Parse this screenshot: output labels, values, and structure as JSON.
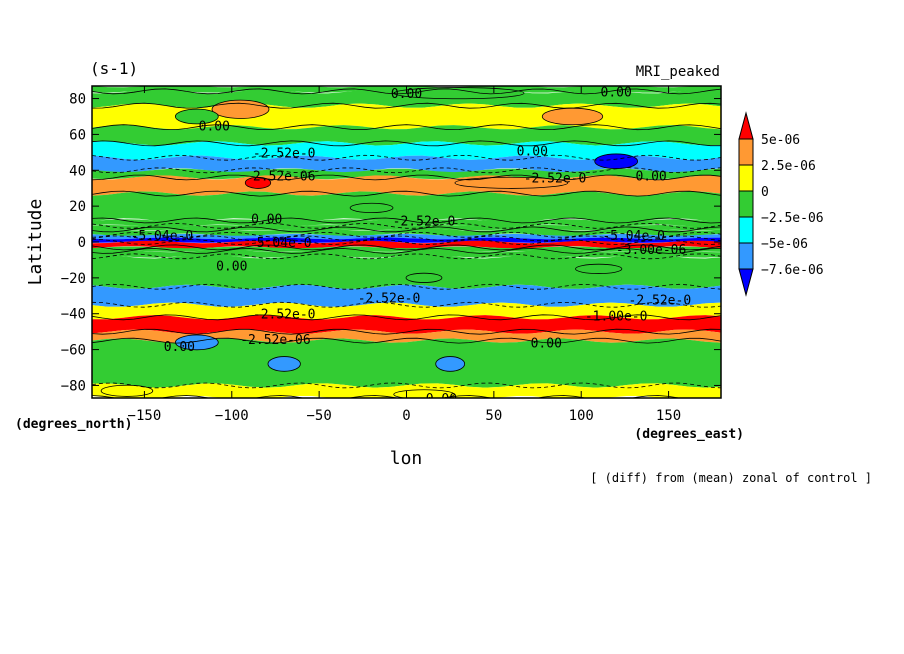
{
  "header": {
    "units": "(s-1)",
    "model": "MRI_peaked"
  },
  "footer": {
    "note": "[ (diff) from (mean) zonal of control ]"
  },
  "chart_data": {
    "type": "heatmap",
    "title": "",
    "xlabel": "lon",
    "ylabel": "Latitude",
    "x_units": "(degrees_east)",
    "y_units": "(degrees_north)",
    "xlim": [
      -180,
      180
    ],
    "ylim": [
      -87,
      87
    ],
    "x_ticks": [
      -150,
      -100,
      -50,
      0,
      50,
      100,
      150
    ],
    "y_ticks": [
      -80,
      -60,
      -40,
      -20,
      0,
      20,
      40,
      60,
      80
    ],
    "colorbar": {
      "labels": [
        "5e-06",
        "2.5e-06",
        "0",
        "-2.5e-06",
        "-5e-06",
        "-7.6e-06"
      ],
      "colors": [
        "#ff0000",
        "#ff9933",
        "#ffff00",
        "#33cc33",
        "#00ffff",
        "#3399ff",
        "#0000ff"
      ]
    },
    "contour_labels": [
      "0.00",
      "-2.52e-0",
      "2.52e-0",
      "2.52e-06",
      "-2.52e-06",
      "-5.04e-0",
      "-3.00e-06",
      "-1.00e-0",
      "5.04e-0"
    ],
    "zonal_bands": [
      {
        "lat_max": 87,
        "lat_min": 84,
        "value": 0.0
      },
      {
        "lat_max": 84,
        "lat_min": 76,
        "value": 0.0
      },
      {
        "lat_max": 76,
        "lat_min": 64,
        "value": 1.2e-06
      },
      {
        "lat_max": 64,
        "lat_min": 55,
        "value": 0.0
      },
      {
        "lat_max": 55,
        "lat_min": 47,
        "value": -3e-06
      },
      {
        "lat_max": 47,
        "lat_min": 40,
        "value": -5.5e-06
      },
      {
        "lat_max": 40,
        "lat_min": 36,
        "value": 0.0
      },
      {
        "lat_max": 36,
        "lat_min": 27,
        "value": 3e-06
      },
      {
        "lat_max": 27,
        "lat_min": 12,
        "value": 0.0
      },
      {
        "lat_max": 12,
        "lat_min": 9,
        "value": -1.5e-06
      },
      {
        "lat_max": 9,
        "lat_min": 7,
        "value": 0.0
      },
      {
        "lat_max": 7,
        "lat_min": 4,
        "value": -1.5e-06
      },
      {
        "lat_max": 4,
        "lat_min": 2,
        "value": -5.5e-06
      },
      {
        "lat_max": 2,
        "lat_min": 0,
        "value": -8e-06
      },
      {
        "lat_max": 0,
        "lat_min": -3,
        "value": 6e-06
      },
      {
        "lat_max": -3,
        "lat_min": -5,
        "value": 0.0
      },
      {
        "lat_max": -5,
        "lat_min": -8,
        "value": -1.5e-06
      },
      {
        "lat_max": -8,
        "lat_min": -25,
        "value": -1.5e-06
      },
      {
        "lat_max": -25,
        "lat_min": -35,
        "value": -5.5e-06
      },
      {
        "lat_max": -35,
        "lat_min": -42,
        "value": 1.2e-06
      },
      {
        "lat_max": -42,
        "lat_min": -50,
        "value": 6e-06
      },
      {
        "lat_max": -50,
        "lat_min": -55,
        "value": 3e-06
      },
      {
        "lat_max": -55,
        "lat_min": -80,
        "value": -1.5e-06
      },
      {
        "lat_max": -80,
        "lat_min": -87,
        "value": 1.2e-06
      }
    ],
    "blobs": [
      {
        "lon": -95,
        "lat": 74,
        "w": 28,
        "h": 8,
        "value": 3e-06
      },
      {
        "lon": 95,
        "lat": 70,
        "w": 30,
        "h": 7,
        "value": 3e-06
      },
      {
        "lon": -120,
        "lat": 70,
        "w": 20,
        "h": 6,
        "value": 0.0
      },
      {
        "lon": 30,
        "lat": 83,
        "w": 70,
        "h": 4,
        "value": -1.5e-06
      },
      {
        "lon": 120,
        "lat": 45,
        "w": 20,
        "h": 6,
        "value": -8e-06
      },
      {
        "lon": -85,
        "lat": 33,
        "w": 10,
        "h": 4,
        "value": 6e-06
      },
      {
        "lon": 60,
        "lat": 33,
        "w": 60,
        "h": 4,
        "value": 3e-06
      },
      {
        "lon": -20,
        "lat": 19,
        "w": 20,
        "h": 3,
        "value": -1.5e-06
      },
      {
        "lon": 10,
        "lat": -20,
        "w": 16,
        "h": 3,
        "value": 0.0
      },
      {
        "lon": 110,
        "lat": -15,
        "w": 22,
        "h": 3,
        "value": 0.0
      },
      {
        "lon": -120,
        "lat": -56,
        "w": 20,
        "h": 6,
        "value": -5.5e-06
      },
      {
        "lon": -70,
        "lat": -68,
        "w": 14,
        "h": 6,
        "value": -5.5e-06
      },
      {
        "lon": 25,
        "lat": -68,
        "w": 12,
        "h": 6,
        "value": -5.5e-06
      },
      {
        "lon": -160,
        "lat": -83,
        "w": 25,
        "h": 4,
        "value": 1.2e-06
      },
      {
        "lon": 10,
        "lat": -85,
        "w": 30,
        "h": 3,
        "value": 1.2e-06
      }
    ]
  }
}
